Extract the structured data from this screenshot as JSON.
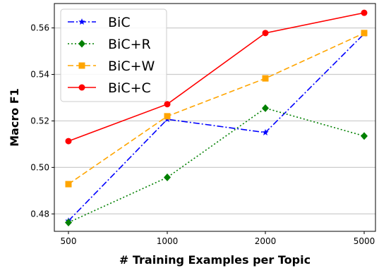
{
  "chart_data": {
    "type": "line",
    "xlabel": "# Training Examples per Topic",
    "ylabel": "Macro F1",
    "categories": [
      "500",
      "1000",
      "2000",
      "5000"
    ],
    "ylim": [
      0.4725,
      0.5705
    ],
    "yticks": [
      "0.48",
      "0.50",
      "0.52",
      "0.54",
      "0.56"
    ],
    "ytick_values": [
      0.48,
      0.5,
      0.52,
      0.54,
      0.56
    ],
    "grid": "horizontal",
    "legend_position": "top-left",
    "series": [
      {
        "name": "BiC",
        "color": "#0000ff",
        "dash": "dashdot",
        "marker": "star",
        "values": [
          0.477,
          0.5207,
          0.515,
          0.5575
        ]
      },
      {
        "name": "BiC+R",
        "color": "#008000",
        "dash": "dotted",
        "marker": "diamond",
        "values": [
          0.4763,
          0.4957,
          0.5255,
          0.5135
        ]
      },
      {
        "name": "BiC+W",
        "color": "#ffa500",
        "dash": "dashed",
        "marker": "square",
        "values": [
          0.4928,
          0.522,
          0.5383,
          0.5578
        ]
      },
      {
        "name": "BiC+C",
        "color": "#ff0000",
        "dash": "solid",
        "marker": "circle",
        "values": [
          0.5113,
          0.5272,
          0.5578,
          0.5665
        ]
      }
    ]
  }
}
